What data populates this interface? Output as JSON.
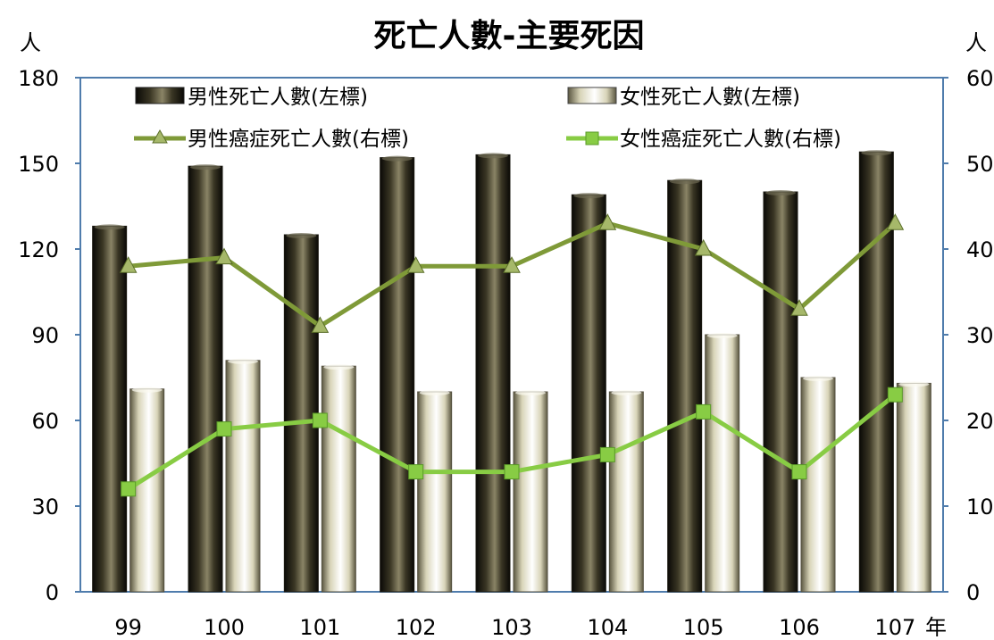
{
  "chart_data": {
    "type": "bar",
    "title": "死亡人數-主要死因",
    "left_axis": {
      "unit": "人",
      "range": [
        0,
        180
      ],
      "ticks": [
        "0",
        "30",
        "60",
        "90",
        "120",
        "150",
        "180"
      ]
    },
    "right_axis": {
      "unit": "人",
      "range": [
        0,
        60
      ],
      "ticks": [
        "0",
        "10",
        "20",
        "30",
        "40",
        "50",
        "60"
      ]
    },
    "x_unit": "年",
    "categories": [
      "99",
      "100",
      "101",
      "102",
      "103",
      "104",
      "105",
      "106",
      "107"
    ],
    "series": [
      {
        "name": "男性死亡人數(左標)",
        "kind": "bar",
        "axis": "left",
        "color": "#4a4632",
        "values": [
          128,
          149,
          125,
          152,
          153,
          139,
          144,
          140,
          154
        ]
      },
      {
        "name": "女性死亡人數(左標)",
        "kind": "bar",
        "axis": "left",
        "color": "#f2f0dc",
        "values": [
          71,
          81,
          79,
          70,
          70,
          70,
          90,
          75,
          73
        ]
      },
      {
        "name": "男性癌症死亡人數(右標)",
        "kind": "line",
        "axis": "right",
        "marker": "triangle",
        "color": "#7f9a38",
        "values": [
          38,
          39,
          31,
          38,
          38,
          43,
          40,
          33,
          43
        ]
      },
      {
        "name": "女性癌症死亡人數(右標)",
        "kind": "line",
        "axis": "right",
        "marker": "square",
        "color": "#88cc44",
        "values": [
          12,
          19,
          20,
          14,
          14,
          16,
          21,
          14,
          23
        ]
      }
    ],
    "legend_position": "top",
    "grid": false
  }
}
